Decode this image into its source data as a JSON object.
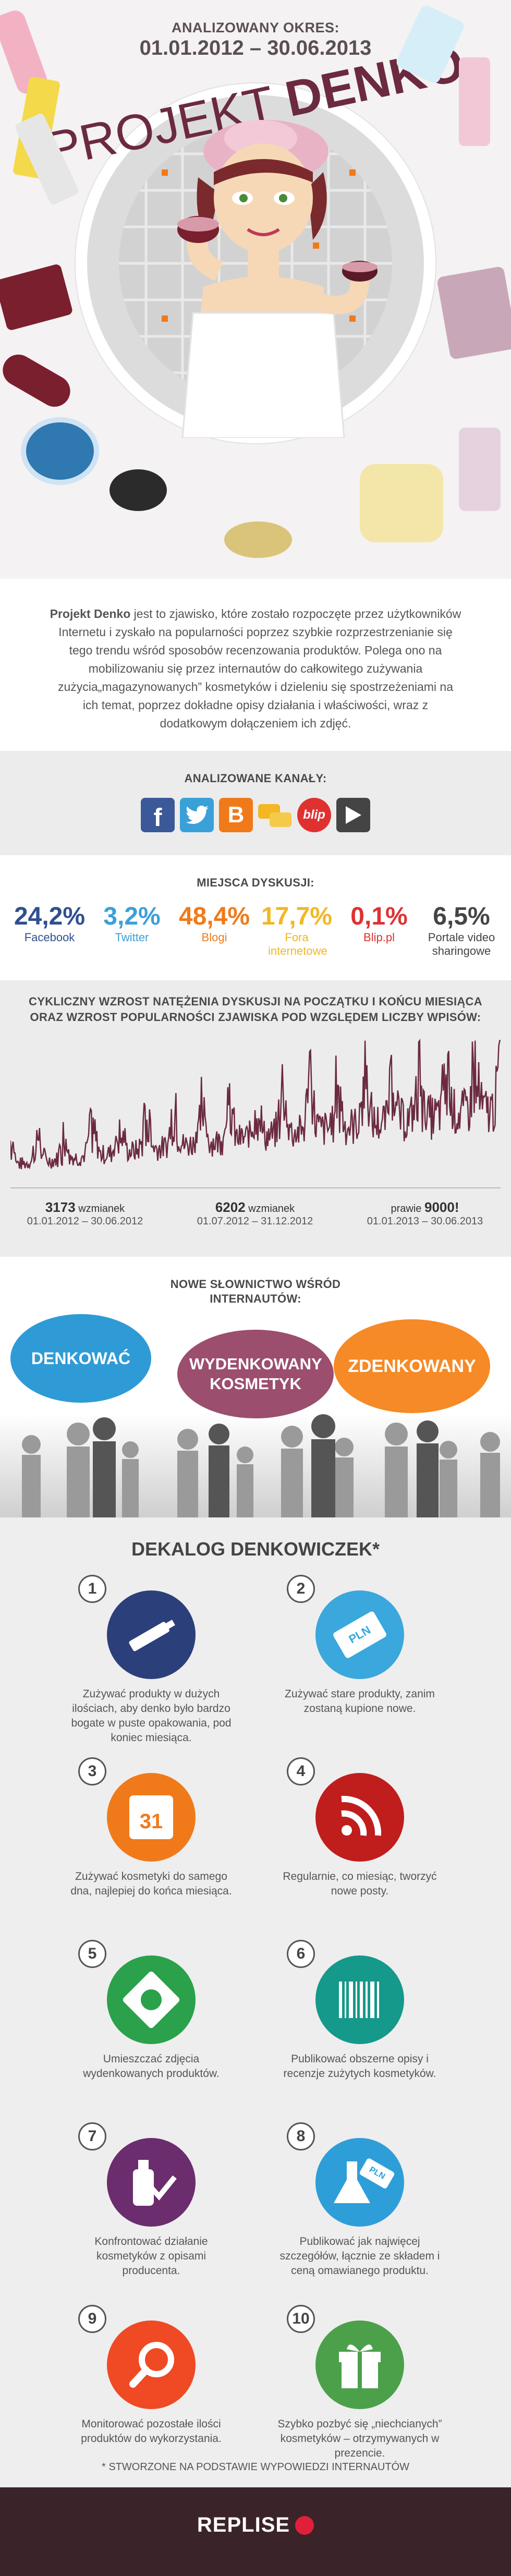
{
  "header": {
    "period_label": "ANALIZOWANY OKRES:",
    "period_dates": "01.01.2012 – 30.06.2013",
    "title_light": "PROJEKT",
    "title_bold": "DENKO"
  },
  "intro": {
    "lead": "Projekt Denko",
    "text": " jest to zjawisko, które zostało rozpoczęte przez użytkowników Internetu i zyskało na popularności poprzez szybkie rozprzestrzenianie się tego trendu wśród sposobów recenzowania produktów. Polega ono na mobilizowaniu się przez internautów do całkowitego zużywania zużycia„magazynowanych” kosmetyków i dzieleniu się spostrzeżeniami na ich temat, poprzez dokładne opisy działania i właściwości, wraz z dodatkowym dołączeniem ich zdjęć."
  },
  "channels": {
    "heading": "ANALIZOWANE KANAŁY:",
    "icons": [
      "facebook-icon",
      "twitter-icon",
      "blogger-icon",
      "forum-icon",
      "blip-icon",
      "video-icon"
    ],
    "blip_text": "blip"
  },
  "places": {
    "heading": "MIEJSCA DYSKUSJI:",
    "items": [
      {
        "value": "24,2%",
        "label": "Facebook",
        "color": "#2f4f8f"
      },
      {
        "value": "3,2%",
        "label": "Twitter",
        "color": "#3aa0d8"
      },
      {
        "value": "48,4%",
        "label": "Blogi",
        "color": "#f07a1a"
      },
      {
        "value": "17,7%",
        "label": "Fora internetowe",
        "color": "#f2b722"
      },
      {
        "value": "0,1%",
        "label": "Blip.pl",
        "color": "#e03131"
      },
      {
        "value": "6,5%",
        "label": "Portale video sharingowe",
        "color": "#444444"
      }
    ]
  },
  "trend": {
    "heading1": "CYKLICZNY WZROST NATĘŻENIA DYSKUSJI NA POCZĄTKU I KOŃCU MIESIĄCA",
    "heading2": "ORAZ WZROST POPULARNOŚCI ZJAWISKA POD WZGLĘDEM LICZBY WPISÓW:",
    "line_color": "#6b2a3f",
    "periods": [
      {
        "count": "3173",
        "unit": " wzmianek",
        "dates": "01.01.2012 – 30.06.2012"
      },
      {
        "count": "6202",
        "unit": " wzmianek",
        "dates": "01.07.2012 – 31.12.2012"
      },
      {
        "prefix": "prawie ",
        "count": "9000!",
        "dates": "01.01.2013 – 30.06.2013"
      }
    ]
  },
  "vocab": {
    "heading1": "NOWE SŁOWNICTWO WŚRÓD",
    "heading2": "INTERNAUTÓW:",
    "bubbles": [
      {
        "text": "DENKOWAĆ",
        "color": "#2f9bd6"
      },
      {
        "text": "WYDENKOWANY KOSMETYK",
        "color": "#9c4e6f"
      },
      {
        "text": "ZDENKOWANY",
        "color": "#f58a26"
      }
    ]
  },
  "dekalog": {
    "heading": "DEKALOG DENKOWICZEK*",
    "items": [
      {
        "n": "1",
        "icon": "tube-icon",
        "color": "#2b3f7a",
        "text": "Zużywać produkty w dużych ilościach, aby denko było bardzo bogate w puste opakowania, pod koniec miesiąca."
      },
      {
        "n": "2",
        "icon": "price-tag-icon",
        "color": "#3aa7dd",
        "text": "Zużywać stare produkty, zanim zostaną kupione nowe."
      },
      {
        "n": "3",
        "icon": "calendar-icon",
        "color": "#f07a1a",
        "text": "Zużywać kosmetyki do samego dna, najlepiej do końca miesiąca."
      },
      {
        "n": "4",
        "icon": "rss-icon",
        "color": "#c01d1d",
        "text": "Regularnie, co miesiąc, tworzyć nowe posty."
      },
      {
        "n": "5",
        "icon": "photo-icon",
        "color": "#2aa14a",
        "text": "Umieszczać zdjęcia wydenkowanych produktów."
      },
      {
        "n": "6",
        "icon": "barcode-icon",
        "color": "#14998a",
        "text": "Publikować obszerne opisy i recenzje zużytych kosmetyków."
      },
      {
        "n": "7",
        "icon": "check-bottle-icon",
        "color": "#6b2d6e",
        "text": "Konfrontować działanie kosmetyków z opisami producenta."
      },
      {
        "n": "8",
        "icon": "flask-tag-icon",
        "color": "#2e9ed9",
        "text": "Publikować jak najwięcej szczegółów, łącznie ze składem i ceną omawianego produktu."
      },
      {
        "n": "9",
        "icon": "magnifier-icon",
        "color": "#ef4a24",
        "text": "Monitorować pozostałe ilości produktów do wykorzystania."
      },
      {
        "n": "10",
        "icon": "gift-icon",
        "color": "#4ca04a",
        "text": "Szybko pozbyć się „niechcianych” kosmetyków – otrzymywanych w prezencie."
      }
    ],
    "calendar_day": "31",
    "tag_text": "PLN",
    "flask_tag_text": "PLN",
    "footnote": "* STWORZONE NA PODSTAWIE WYPOWIEDZI INTERNAUTÓW"
  },
  "footer": {
    "brand": "REPLISE"
  }
}
